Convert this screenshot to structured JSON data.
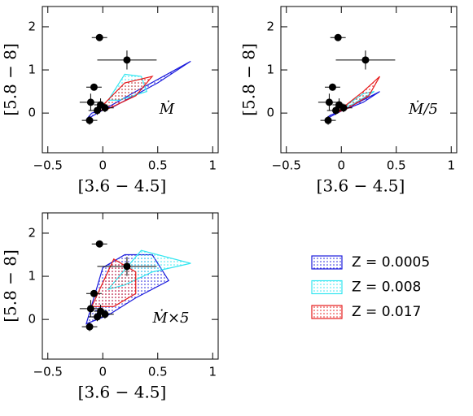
{
  "chart_data": [
    {
      "type": "scatter",
      "xlabel": "[3.6 − 4.5]",
      "ylabel": "[5.8 − 8]",
      "annotation": "Ṁ",
      "xlim": [
        -0.55,
        1.05
      ],
      "ylim": [
        -0.92,
        2.47
      ],
      "xticks": [
        {
          "value": -0.5,
          "label": "−0.5"
        },
        0,
        0.5,
        1
      ],
      "yticks": [
        0,
        1,
        2
      ],
      "points": {
        "color": "#000000",
        "x": [
          -0.03,
          0.22,
          -0.08,
          -0.11,
          -0.12,
          -0.05,
          -0.02,
          0.02
        ],
        "y": [
          1.75,
          1.23,
          0.6,
          0.25,
          -0.17,
          0.06,
          0.19,
          0.12
        ],
        "xerr": [
          0.07,
          0.27,
          0.07,
          0.1,
          0.07,
          0.08,
          0.06,
          0.08
        ],
        "yerr": [
          0.08,
          0.22,
          0.08,
          0.2,
          0.1,
          0.1,
          0.15,
          0.1
        ]
      },
      "series": [
        {
          "color": "#1a1adc",
          "x": [
            -0.15,
            0.3,
            0.8,
            0.5,
            0.1,
            -0.1
          ],
          "y": [
            -0.15,
            0.5,
            1.2,
            0.7,
            0.15,
            0.0
          ]
        },
        {
          "color": "#33e6f0",
          "x": [
            0.05,
            0.2,
            0.35,
            0.4,
            0.15
          ],
          "y": [
            0.3,
            0.9,
            0.85,
            0.5,
            0.3
          ]
        },
        {
          "color": "#e61a1a",
          "x": [
            -0.05,
            0.2,
            0.45,
            0.3,
            0.05
          ],
          "y": [
            0.05,
            0.7,
            0.85,
            0.4,
            0.1
          ]
        }
      ]
    },
    {
      "type": "scatter",
      "xlabel": "[3.6 − 4.5]",
      "ylabel": "[5.8 − 8]",
      "annotation": "Ṁ/5",
      "xlim": [
        -0.55,
        1.05
      ],
      "ylim": [
        -0.92,
        2.47
      ],
      "xticks": [
        {
          "value": -0.5,
          "label": "−0.5"
        },
        0,
        0.5,
        1
      ],
      "yticks": [
        0,
        1,
        2
      ],
      "points": {
        "color": "#000000",
        "x": [
          -0.03,
          0.22,
          -0.08,
          -0.11,
          -0.12,
          -0.05,
          -0.02,
          0.02
        ],
        "y": [
          1.75,
          1.23,
          0.6,
          0.25,
          -0.17,
          0.06,
          0.19,
          0.12
        ],
        "xerr": [
          0.07,
          0.27,
          0.07,
          0.1,
          0.07,
          0.08,
          0.06,
          0.08
        ],
        "yerr": [
          0.08,
          0.22,
          0.08,
          0.2,
          0.1,
          0.1,
          0.15,
          0.1
        ]
      },
      "series": [
        {
          "color": "#1a1adc",
          "x": [
            -0.15,
            0.35,
            0.2,
            -0.1
          ],
          "y": [
            -0.15,
            0.5,
            0.25,
            -0.05
          ]
        },
        {
          "color": "#33e6f0",
          "x": [
            0.0,
            0.2,
            0.3,
            0.1
          ],
          "y": [
            0.1,
            0.45,
            0.5,
            0.2
          ]
        },
        {
          "color": "#e61a1a",
          "x": [
            -0.05,
            0.2,
            0.35,
            0.25,
            0.05
          ],
          "y": [
            0.0,
            0.5,
            0.85,
            0.4,
            0.1
          ]
        }
      ]
    },
    {
      "type": "scatter",
      "xlabel": "[3.6 − 4.5]",
      "ylabel": "[5.8 − 8]",
      "annotation": "Ṁ×5",
      "xlim": [
        -0.55,
        1.05
      ],
      "ylim": [
        -0.92,
        2.47
      ],
      "xticks": [
        {
          "value": -0.5,
          "label": "−0.5"
        },
        0,
        0.5,
        1
      ],
      "yticks": [
        0,
        1,
        2
      ],
      "points": {
        "color": "#000000",
        "x": [
          -0.03,
          0.22,
          -0.08,
          -0.11,
          -0.12,
          -0.05,
          -0.02,
          0.02
        ],
        "y": [
          1.75,
          1.23,
          0.6,
          0.25,
          -0.17,
          0.06,
          0.19,
          0.12
        ],
        "xerr": [
          0.07,
          0.27,
          0.07,
          0.1,
          0.07,
          0.08,
          0.06,
          0.08
        ],
        "yerr": [
          0.08,
          0.22,
          0.08,
          0.2,
          0.1,
          0.1,
          0.15,
          0.1
        ]
      },
      "series": [
        {
          "name": "Z = 0.0005",
          "color": "#1a1adc",
          "x": [
            -0.15,
            0.0,
            0.2,
            0.45,
            0.6,
            0.3,
            0.05
          ],
          "y": [
            -0.1,
            1.2,
            1.5,
            1.5,
            0.9,
            0.5,
            0.1
          ]
        },
        {
          "name": "Z = 0.008",
          "color": "#33e6f0",
          "x": [
            0.05,
            0.35,
            0.8,
            0.45,
            0.2
          ],
          "y": [
            0.7,
            1.6,
            1.3,
            1.1,
            0.8
          ]
        },
        {
          "name": "Z = 0.017",
          "color": "#e61a1a",
          "x": [
            -0.1,
            0.1,
            0.3,
            0.3,
            0.1
          ],
          "y": [
            0.3,
            1.4,
            1.1,
            0.6,
            0.3
          ]
        }
      ]
    }
  ]
}
